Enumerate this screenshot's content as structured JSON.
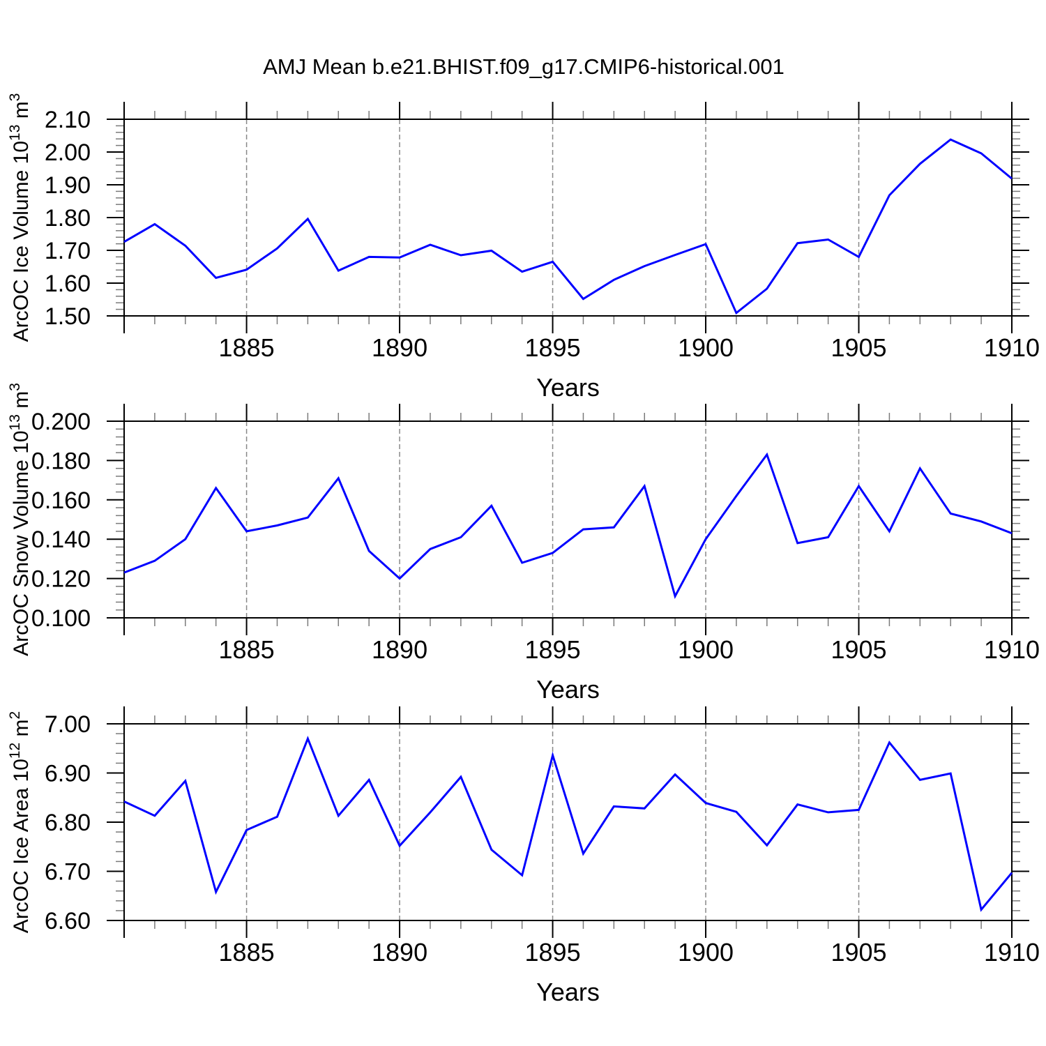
{
  "title": "AMJ Mean b.e21.BHIST.f09_g17.CMIP6-historical.001",
  "xlabel": "Years",
  "line_color": "#0000ff",
  "axis_color": "#000000",
  "minor_tick_color": "#7a7a7a",
  "gridline_color": "#888888",
  "chart_data": [
    {
      "type": "line",
      "name": "arcoc-ice-volume",
      "ylabel": "ArcOC Ice Volume 10^{13} m^{3}",
      "xlabel": "Years",
      "x": [
        1881,
        1882,
        1883,
        1884,
        1885,
        1886,
        1887,
        1888,
        1889,
        1890,
        1891,
        1892,
        1893,
        1894,
        1895,
        1896,
        1897,
        1898,
        1899,
        1900,
        1901,
        1902,
        1903,
        1904,
        1905,
        1906,
        1907,
        1908,
        1909,
        1910
      ],
      "values": [
        1.726,
        1.78,
        1.714,
        1.616,
        1.641,
        1.706,
        1.796,
        1.638,
        1.68,
        1.678,
        1.717,
        1.685,
        1.699,
        1.635,
        1.665,
        1.552,
        1.61,
        1.652,
        1.686,
        1.719,
        1.509,
        1.583,
        1.722,
        1.733,
        1.68,
        1.868,
        1.964,
        2.038,
        1.996,
        1.919
      ],
      "xlim": [
        1881,
        1910
      ],
      "ylim": [
        1.5,
        2.1
      ],
      "ytick_major": 0.1,
      "ytick_minor": 0.02,
      "ytick_labels": [
        "1.50",
        "1.60",
        "1.70",
        "1.80",
        "1.90",
        "2.00",
        "2.10"
      ],
      "xticks": [
        1885,
        1890,
        1895,
        1900,
        1905,
        1910
      ],
      "xtick_labels": [
        "1885",
        "1890",
        "1895",
        "1900",
        "1905",
        "1910"
      ],
      "gridlines_x": [
        1885,
        1890,
        1895,
        1900,
        1905
      ],
      "grid": "vertical-dashed",
      "legend": "none"
    },
    {
      "type": "line",
      "name": "arcoc-snow-volume",
      "ylabel": "ArcOC Snow Volume 10^{13} m^{3}",
      "xlabel": "Years",
      "x": [
        1881,
        1882,
        1883,
        1884,
        1885,
        1886,
        1887,
        1888,
        1889,
        1890,
        1891,
        1892,
        1893,
        1894,
        1895,
        1896,
        1897,
        1898,
        1899,
        1900,
        1901,
        1902,
        1903,
        1904,
        1905,
        1906,
        1907,
        1908,
        1909,
        1910
      ],
      "values": [
        0.123,
        0.129,
        0.14,
        0.166,
        0.144,
        0.147,
        0.151,
        0.171,
        0.134,
        0.12,
        0.135,
        0.141,
        0.157,
        0.128,
        0.133,
        0.145,
        0.146,
        0.167,
        0.111,
        0.14,
        0.162,
        0.183,
        0.138,
        0.141,
        0.167,
        0.144,
        0.176,
        0.153,
        0.149,
        0.143
      ],
      "xlim": [
        1881,
        1910
      ],
      "ylim": [
        0.1,
        0.2
      ],
      "ytick_major": 0.02,
      "ytick_minor": 0.004,
      "ytick_labels": [
        "0.100",
        "0.120",
        "0.140",
        "0.160",
        "0.180",
        "0.200"
      ],
      "xticks": [
        1885,
        1890,
        1895,
        1900,
        1905,
        1910
      ],
      "xtick_labels": [
        "1885",
        "1890",
        "1895",
        "1900",
        "1905",
        "1910"
      ],
      "gridlines_x": [
        1885,
        1890,
        1895,
        1900,
        1905
      ],
      "grid": "vertical-dashed",
      "legend": "none"
    },
    {
      "type": "line",
      "name": "arcoc-ice-area",
      "ylabel": "ArcOC Ice Area 10^{12} m^{2}",
      "xlabel": "Years",
      "x": [
        1881,
        1882,
        1883,
        1884,
        1885,
        1886,
        1887,
        1888,
        1889,
        1890,
        1891,
        1892,
        1893,
        1894,
        1895,
        1896,
        1897,
        1898,
        1899,
        1900,
        1901,
        1902,
        1903,
        1904,
        1905,
        1906,
        1907,
        1908,
        1909,
        1910
      ],
      "values": [
        6.842,
        6.813,
        6.884,
        6.658,
        6.784,
        6.811,
        6.97,
        6.813,
        6.886,
        6.752,
        6.82,
        6.892,
        6.744,
        6.692,
        6.936,
        6.736,
        6.832,
        6.828,
        6.897,
        6.839,
        6.821,
        6.753,
        6.836,
        6.82,
        6.825,
        6.962,
        6.886,
        6.899,
        6.622,
        6.697
      ],
      "xlim": [
        1881,
        1910
      ],
      "ylim": [
        6.6,
        7.0
      ],
      "ytick_major": 0.1,
      "ytick_minor": 0.02,
      "ytick_labels": [
        "6.60",
        "6.70",
        "6.80",
        "6.90",
        "7.00"
      ],
      "xticks": [
        1885,
        1890,
        1895,
        1900,
        1905,
        1910
      ],
      "xtick_labels": [
        "1885",
        "1890",
        "1895",
        "1900",
        "1905",
        "1910"
      ],
      "gridlines_x": [
        1885,
        1890,
        1895,
        1900,
        1905
      ],
      "grid": "vertical-dashed",
      "legend": "none"
    }
  ]
}
